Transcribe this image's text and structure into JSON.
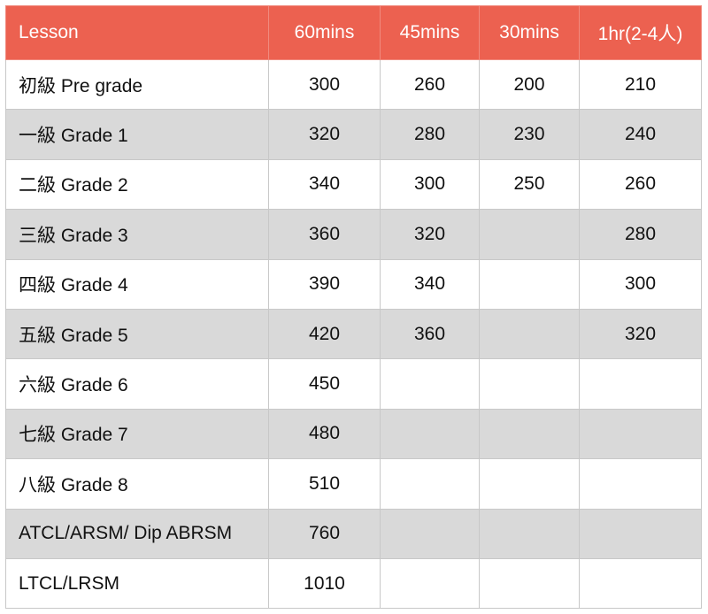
{
  "colors": {
    "header_bg": "#ec6150",
    "header_text": "#ffffff",
    "alt_row": "#d9d9d9"
  },
  "headers": [
    "Lesson",
    "60mins",
    "45mins",
    "30mins",
    "1hr(2-4人)"
  ],
  "rows": [
    [
      "初級 Pre grade",
      "300",
      "260",
      "200",
      "210"
    ],
    [
      "一級 Grade 1",
      "320",
      "280",
      "230",
      "240"
    ],
    [
      "二級 Grade 2",
      "340",
      "300",
      "250",
      "260"
    ],
    [
      "三級 Grade 3",
      "360",
      "320",
      "",
      "280"
    ],
    [
      "四級 Grade 4",
      "390",
      "340",
      "",
      "300"
    ],
    [
      "五級 Grade 5",
      "420",
      "360",
      "",
      "320"
    ],
    [
      "六級 Grade 6",
      "450",
      "",
      "",
      ""
    ],
    [
      "七級 Grade 7",
      "480",
      "",
      "",
      ""
    ],
    [
      "八級 Grade 8",
      "510",
      "",
      "",
      ""
    ],
    [
      "ATCL/ARSM/ Dip ABRSM",
      "760",
      "",
      "",
      ""
    ],
    [
      "LTCL/LRSM",
      "1010",
      "",
      "",
      ""
    ]
  ]
}
